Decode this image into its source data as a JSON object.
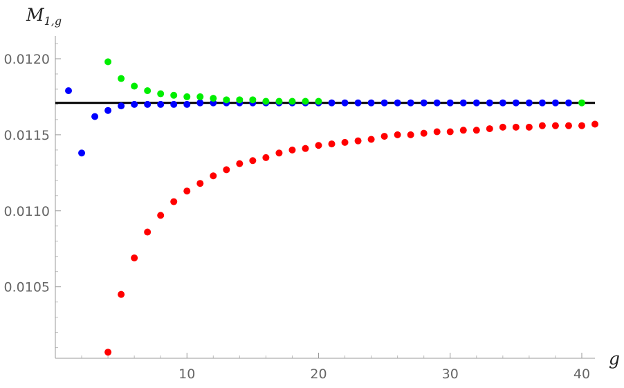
{
  "chart_data": {
    "type": "scatter",
    "title": "",
    "ylabel_main": "M",
    "ylabel_sub": "1,g",
    "xlabel": "g",
    "xlim": [
      0,
      41
    ],
    "ylim": [
      0.01003,
      0.01215
    ],
    "x_ticks": [
      10,
      20,
      30,
      40
    ],
    "x_tick_labels": [
      "10",
      "20",
      "30",
      "40"
    ],
    "y_ticks": [
      0.0105,
      0.011,
      0.0115,
      0.012
    ],
    "y_tick_labels": [
      "0.0105",
      "0.0110",
      "0.0115",
      "0.0120"
    ],
    "grid": false,
    "reference_line": {
      "y": 0.01171,
      "color": "#000000"
    },
    "series": [
      {
        "color": "#0000ff",
        "points": [
          [
            1,
            0.01179
          ],
          [
            2,
            0.01138
          ],
          [
            3,
            0.01162
          ],
          [
            4,
            0.01166
          ],
          [
            5,
            0.01169
          ],
          [
            6,
            0.0117
          ],
          [
            7,
            0.0117
          ],
          [
            8,
            0.0117
          ],
          [
            9,
            0.0117
          ],
          [
            10,
            0.0117
          ],
          [
            11,
            0.01171
          ],
          [
            12,
            0.01171
          ],
          [
            13,
            0.01171
          ],
          [
            14,
            0.01171
          ],
          [
            15,
            0.01171
          ],
          [
            16,
            0.01171
          ],
          [
            17,
            0.01171
          ],
          [
            18,
            0.01171
          ],
          [
            19,
            0.01171
          ],
          [
            20,
            0.01171
          ],
          [
            21,
            0.01171
          ],
          [
            22,
            0.01171
          ],
          [
            23,
            0.01171
          ],
          [
            24,
            0.01171
          ],
          [
            25,
            0.01171
          ],
          [
            26,
            0.01171
          ],
          [
            27,
            0.01171
          ],
          [
            28,
            0.01171
          ],
          [
            29,
            0.01171
          ],
          [
            30,
            0.01171
          ],
          [
            31,
            0.01171
          ],
          [
            32,
            0.01171
          ],
          [
            33,
            0.01171
          ],
          [
            34,
            0.01171
          ],
          [
            35,
            0.01171
          ],
          [
            36,
            0.01171
          ],
          [
            37,
            0.01171
          ],
          [
            38,
            0.01171
          ],
          [
            39,
            0.01171
          ]
        ]
      },
      {
        "color": "#00ee00",
        "points": [
          [
            4,
            0.01198
          ],
          [
            5,
            0.01187
          ],
          [
            6,
            0.01182
          ],
          [
            7,
            0.01179
          ],
          [
            8,
            0.01177
          ],
          [
            9,
            0.01176
          ],
          [
            10,
            0.01175
          ],
          [
            11,
            0.01175
          ],
          [
            12,
            0.01174
          ],
          [
            13,
            0.01173
          ],
          [
            14,
            0.01173
          ],
          [
            15,
            0.01173
          ],
          [
            16,
            0.01172
          ],
          [
            17,
            0.01172
          ],
          [
            18,
            0.01172
          ],
          [
            19,
            0.01172
          ],
          [
            20,
            0.01172
          ],
          [
            40,
            0.01171
          ]
        ]
      },
      {
        "color": "#ff0000",
        "points": [
          [
            4,
            0.01007
          ],
          [
            5,
            0.01045
          ],
          [
            6,
            0.01069
          ],
          [
            7,
            0.01086
          ],
          [
            8,
            0.01097
          ],
          [
            9,
            0.01106
          ],
          [
            10,
            0.01113
          ],
          [
            11,
            0.01118
          ],
          [
            12,
            0.01123
          ],
          [
            13,
            0.01127
          ],
          [
            14,
            0.01131
          ],
          [
            15,
            0.01133
          ],
          [
            16,
            0.01135
          ],
          [
            17,
            0.01138
          ],
          [
            18,
            0.0114
          ],
          [
            19,
            0.01141
          ],
          [
            20,
            0.01143
          ],
          [
            21,
            0.01144
          ],
          [
            22,
            0.01145
          ],
          [
            23,
            0.01146
          ],
          [
            24,
            0.01147
          ],
          [
            25,
            0.01149
          ],
          [
            26,
            0.0115
          ],
          [
            27,
            0.0115
          ],
          [
            28,
            0.01151
          ],
          [
            29,
            0.01152
          ],
          [
            30,
            0.01152
          ],
          [
            31,
            0.01153
          ],
          [
            32,
            0.01153
          ],
          [
            33,
            0.01154
          ],
          [
            34,
            0.01155
          ],
          [
            35,
            0.01155
          ],
          [
            36,
            0.01155
          ],
          [
            37,
            0.01156
          ],
          [
            38,
            0.01156
          ],
          [
            39,
            0.01156
          ],
          [
            40,
            0.01156
          ],
          [
            41,
            0.01157
          ]
        ]
      }
    ]
  }
}
